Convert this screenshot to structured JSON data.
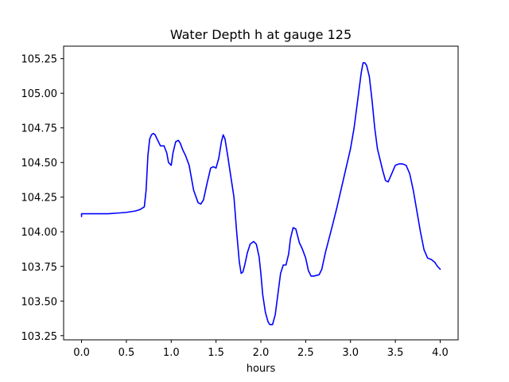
{
  "chart_data": {
    "type": "line",
    "title": "Water Depth h at gauge 125",
    "xlabel": "hours",
    "ylabel": "",
    "xlim": [
      -0.2,
      4.2
    ],
    "ylim": [
      103.22,
      105.34
    ],
    "xticks": [
      0.0,
      0.5,
      1.0,
      1.5,
      2.0,
      2.5,
      3.0,
      3.5,
      4.0
    ],
    "xtick_labels": [
      "0.0",
      "0.5",
      "1.0",
      "1.5",
      "2.0",
      "2.5",
      "3.0",
      "3.5",
      "4.0"
    ],
    "yticks": [
      103.25,
      103.5,
      103.75,
      104.0,
      104.25,
      104.5,
      104.75,
      105.0,
      105.25
    ],
    "ytick_labels": [
      "103.25",
      "103.50",
      "103.75",
      "104.00",
      "104.25",
      "104.50",
      "104.75",
      "105.00",
      "105.25"
    ],
    "grid": false,
    "series": [
      {
        "color": "#0000ff",
        "x": [
          0.0,
          0.0,
          0.1,
          0.2,
          0.3,
          0.4,
          0.5,
          0.6,
          0.65,
          0.7,
          0.72,
          0.74,
          0.76,
          0.78,
          0.8,
          0.82,
          0.85,
          0.88,
          0.9,
          0.92,
          0.95,
          0.97,
          1.0,
          1.02,
          1.05,
          1.08,
          1.1,
          1.13,
          1.16,
          1.2,
          1.25,
          1.3,
          1.33,
          1.36,
          1.4,
          1.44,
          1.47,
          1.5,
          1.53,
          1.56,
          1.58,
          1.6,
          1.63,
          1.66,
          1.7,
          1.73,
          1.76,
          1.78,
          1.8,
          1.82,
          1.85,
          1.88,
          1.92,
          1.95,
          1.98,
          2.0,
          2.02,
          2.05,
          2.08,
          2.1,
          2.13,
          2.16,
          2.19,
          2.22,
          2.25,
          2.28,
          2.31,
          2.33,
          2.36,
          2.39,
          2.41,
          2.43,
          2.46,
          2.5,
          2.53,
          2.56,
          2.59,
          2.62,
          2.65,
          2.68,
          2.72,
          2.76,
          2.8,
          2.85,
          2.9,
          2.95,
          3.0,
          3.04,
          3.08,
          3.12,
          3.14,
          3.16,
          3.18,
          3.21,
          3.24,
          3.27,
          3.3,
          3.33,
          3.36,
          3.39,
          3.42,
          3.46,
          3.5,
          3.54,
          3.58,
          3.62,
          3.66,
          3.7,
          3.74,
          3.78,
          3.82,
          3.86,
          3.9,
          3.94,
          3.97,
          4.0
        ],
        "y": [
          104.11,
          104.13,
          104.13,
          104.13,
          104.13,
          104.135,
          104.14,
          104.15,
          104.16,
          104.18,
          104.3,
          104.55,
          104.67,
          104.7,
          104.71,
          104.7,
          104.66,
          104.62,
          104.62,
          104.62,
          104.57,
          104.5,
          104.48,
          104.57,
          104.65,
          104.66,
          104.64,
          104.59,
          104.55,
          104.48,
          104.3,
          104.21,
          104.2,
          104.23,
          104.35,
          104.46,
          104.47,
          104.46,
          104.53,
          104.65,
          104.7,
          104.67,
          104.55,
          104.42,
          104.25,
          104.0,
          103.78,
          103.7,
          103.71,
          103.76,
          103.85,
          103.91,
          103.93,
          103.91,
          103.82,
          103.7,
          103.55,
          103.42,
          103.35,
          103.33,
          103.33,
          103.4,
          103.55,
          103.7,
          103.76,
          103.76,
          103.84,
          103.95,
          104.03,
          104.02,
          103.97,
          103.92,
          103.88,
          103.81,
          103.72,
          103.68,
          103.68,
          103.685,
          103.69,
          103.73,
          103.85,
          103.95,
          104.05,
          104.18,
          104.32,
          104.46,
          104.6,
          104.75,
          104.95,
          105.15,
          105.22,
          105.22,
          105.2,
          105.12,
          104.95,
          104.75,
          104.6,
          104.52,
          104.44,
          104.37,
          104.36,
          104.42,
          104.48,
          104.49,
          104.49,
          104.48,
          104.42,
          104.3,
          104.15,
          104.0,
          103.87,
          103.81,
          103.8,
          103.78,
          103.75,
          103.73
        ]
      }
    ]
  }
}
